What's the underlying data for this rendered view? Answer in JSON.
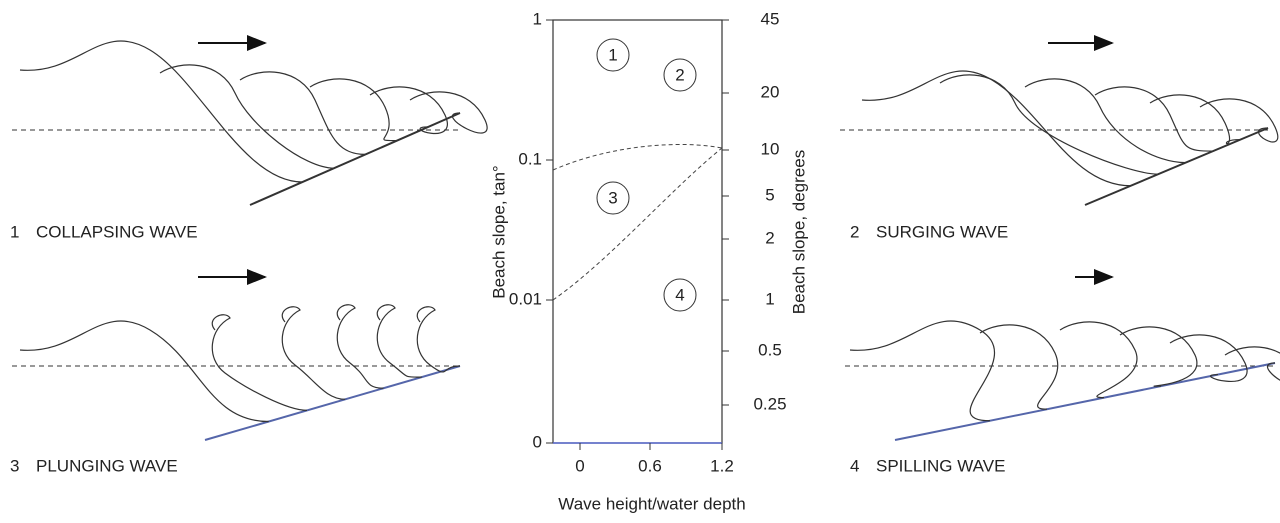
{
  "panels": [
    {
      "number": "1",
      "label": "COLLAPSING WAVE"
    },
    {
      "number": "2",
      "label": "SURGING WAVE"
    },
    {
      "number": "3",
      "label": "PLUNGING WAVE"
    },
    {
      "number": "4",
      "label": "SPILLING WAVE"
    }
  ],
  "chart": {
    "y_label": "Beach slope, tan°",
    "y2_label": "Beach slope, degrees",
    "x_label": "Wave height/water depth",
    "x_ticks": [
      "0",
      "0.6",
      "1.2"
    ],
    "y_ticks": [
      "1",
      "0.1",
      "0.01",
      "0"
    ],
    "y2_ticks": [
      "45",
      "20",
      "10",
      "5",
      "2",
      "1",
      "0.5",
      "0.25"
    ],
    "regions": [
      "1",
      "2",
      "3",
      "4"
    ]
  }
}
